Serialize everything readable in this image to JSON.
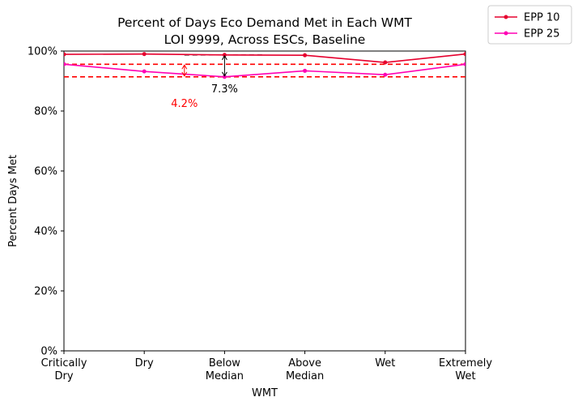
{
  "chart_data": {
    "type": "line",
    "title_line1": "Percent of Days Eco Demand Met in Each WMT",
    "title_line2": "LOI 9999, Across ESCs, Baseline",
    "xlabel": "WMT",
    "ylabel": "Percent Days Met",
    "categories": [
      [
        "Critically",
        "Dry"
      ],
      [
        "Dry"
      ],
      [
        "Below",
        "Median"
      ],
      [
        "Above",
        "Median"
      ],
      [
        "Wet"
      ],
      [
        "Extremely",
        "Wet"
      ]
    ],
    "ylim": [
      0,
      100
    ],
    "yticks": [
      0,
      20,
      40,
      60,
      80,
      100
    ],
    "ytick_labels": [
      "0%",
      "20%",
      "40%",
      "60%",
      "80%",
      "100%"
    ],
    "grid": false,
    "legend_position": "top-right (outside plot)",
    "series": [
      {
        "name": "EPP 10",
        "color": "#e6002e",
        "values": [
          98.9,
          99.0,
          98.7,
          98.6,
          96.2,
          99.0
        ]
      },
      {
        "name": "EPP 25",
        "color": "#ff00b4",
        "values": [
          95.6,
          93.2,
          91.4,
          93.4,
          92.1,
          95.6
        ]
      }
    ],
    "annotations": {
      "hlines": [
        {
          "y": 95.6,
          "color": "#ff0000",
          "style": "dashed"
        },
        {
          "y": 91.4,
          "color": "#ff0000",
          "style": "dashed"
        }
      ],
      "black_dashed": {
        "y": 98.7,
        "x_from": 1.5,
        "x_to": 2.5
      },
      "black_arrow": {
        "x": 2,
        "y_top": 98.7,
        "y_bottom": 91.4,
        "label": "7.3%",
        "label_color": "#000000"
      },
      "red_arrow": {
        "x": 1.5,
        "y_top": 95.6,
        "y_bottom": 91.4,
        "label": "4.2%",
        "label_color": "#ff0000"
      }
    }
  }
}
